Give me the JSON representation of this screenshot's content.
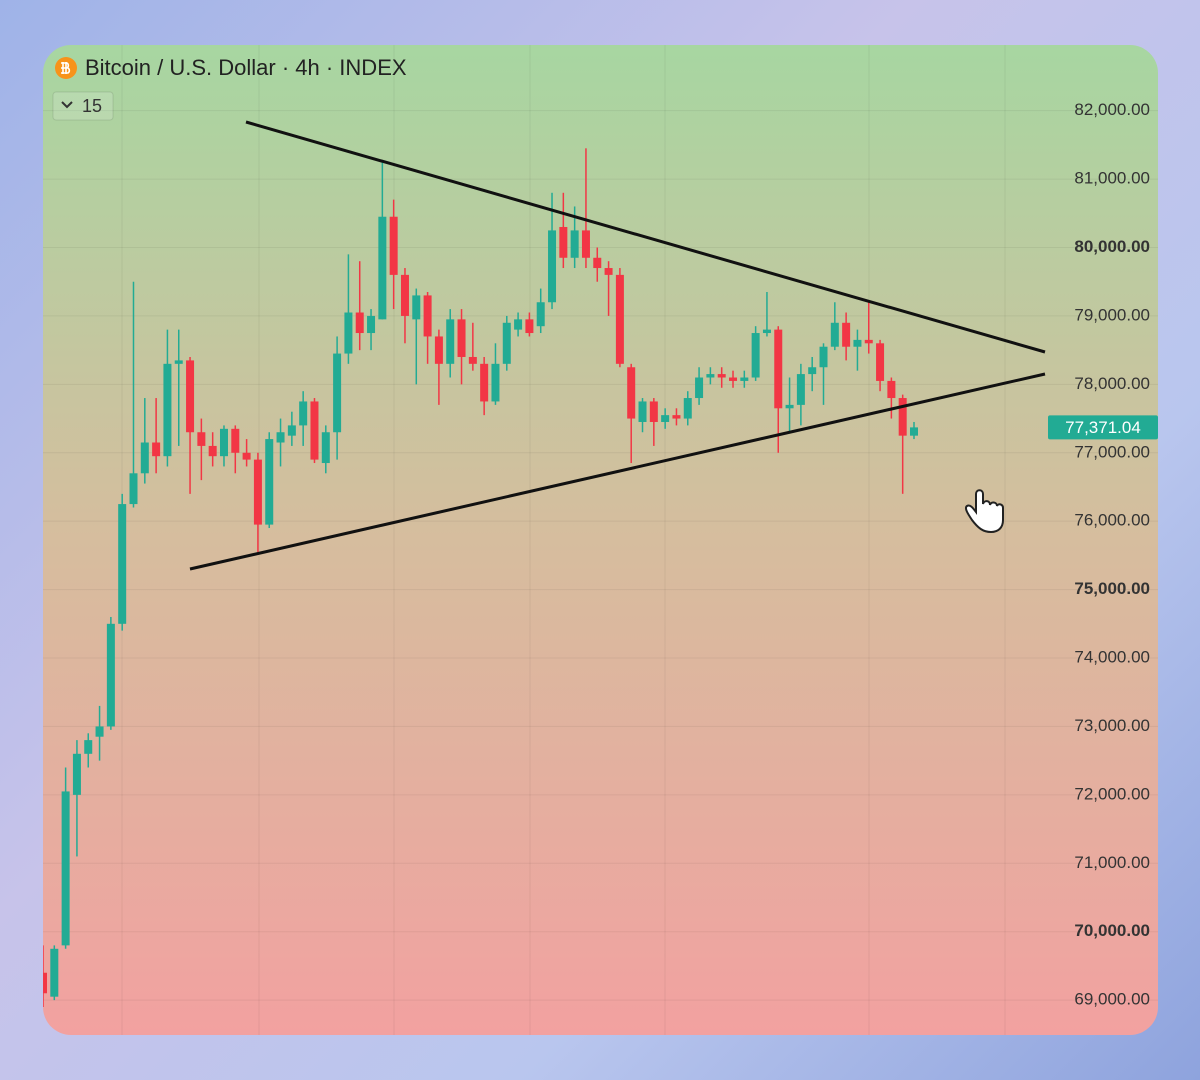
{
  "chart_data": {
    "type": "candlestick",
    "title": "Bitcoin / U.S. Dollar · 4h · INDEX",
    "indicator_count": 15,
    "open": [
      69400,
      69050,
      69800,
      72000,
      72600,
      72850,
      73000,
      74500,
      76250,
      76700,
      77150,
      76950,
      78300,
      78350,
      77300,
      77100,
      76950,
      77350,
      77000,
      76900,
      75950,
      77150,
      77250,
      77400,
      77750,
      76850,
      77300,
      78450,
      79050,
      78750,
      78950,
      80450,
      79600,
      78950,
      79300,
      78700,
      78300,
      78950,
      78400,
      78300,
      77750,
      78300,
      78800,
      78950,
      78850,
      79200,
      80300,
      79850,
      80250,
      79850,
      79700,
      79600,
      78250,
      77450,
      77750,
      77450,
      77550,
      77500,
      77800,
      78100,
      78150,
      78100,
      78050,
      78100,
      78750,
      78800,
      77650,
      77700,
      78150,
      78250,
      78550,
      78900,
      78550,
      78650,
      78600,
      78050,
      77800,
      77250
    ],
    "high": [
      69800,
      69800,
      72400,
      72800,
      72900,
      73300,
      74600,
      76400,
      79500,
      77800,
      77800,
      78800,
      78800,
      78400,
      77500,
      77300,
      77400,
      77400,
      77200,
      77000,
      77300,
      77500,
      77600,
      77900,
      77800,
      77400,
      78700,
      79900,
      79800,
      79100,
      81250,
      80700,
      79700,
      79400,
      79350,
      78800,
      79100,
      79100,
      78900,
      78400,
      78600,
      79000,
      79050,
      79050,
      79400,
      80800,
      80800,
      80600,
      81450,
      80000,
      79800,
      79700,
      78300,
      77800,
      77800,
      77650,
      77650,
      77900,
      78250,
      78250,
      78250,
      78200,
      78200,
      78850,
      79350,
      78850,
      78100,
      78300,
      78400,
      78600,
      79200,
      79050,
      78800,
      79200,
      78650,
      78100,
      77850,
      77450
    ],
    "low": [
      68900,
      69000,
      69750,
      71100,
      72400,
      72500,
      72950,
      74400,
      76200,
      76550,
      76700,
      76800,
      77100,
      76400,
      76600,
      76800,
      76800,
      76700,
      76800,
      75550,
      75900,
      76800,
      77100,
      77100,
      76850,
      76700,
      76900,
      78300,
      78500,
      78500,
      78950,
      79100,
      78600,
      78000,
      78300,
      77700,
      78100,
      78000,
      78200,
      77550,
      77700,
      78200,
      78700,
      78700,
      78750,
      79100,
      79700,
      79700,
      79700,
      79500,
      79000,
      78250,
      76850,
      77300,
      77100,
      77350,
      77400,
      77400,
      77700,
      78000,
      77950,
      77950,
      77950,
      78050,
      78700,
      77000,
      77300,
      77400,
      77900,
      77700,
      78500,
      78350,
      78200,
      78450,
      77900,
      77500,
      76400,
      77200
    ],
    "close": [
      69100,
      69750,
      72050,
      72600,
      72800,
      73000,
      74500,
      76250,
      76700,
      77150,
      76950,
      78300,
      78350,
      77300,
      77100,
      76950,
      77350,
      77000,
      76900,
      75950,
      77200,
      77300,
      77400,
      77750,
      76900,
      77300,
      78450,
      79050,
      78750,
      79000,
      80450,
      79600,
      79000,
      79300,
      78700,
      78300,
      78950,
      78400,
      78300,
      77750,
      78300,
      78900,
      78950,
      78750,
      79200,
      80250,
      79850,
      80250,
      79850,
      79700,
      79600,
      78300,
      77500,
      77750,
      77450,
      77550,
      77500,
      77800,
      78100,
      78150,
      78100,
      78050,
      78100,
      78750,
      78800,
      77650,
      77700,
      78150,
      78250,
      78550,
      78900,
      78550,
      78650,
      78600,
      78050,
      77800,
      77250,
      77371.04
    ],
    "colors": {
      "up": "#22ab94",
      "down": "#f23645"
    },
    "ylim": [
      68490,
      82960
    ],
    "yticks": [
      {
        "value": 69000,
        "label": "69,000.00"
      },
      {
        "value": 70000,
        "label": "70,000.00"
      },
      {
        "value": 71000,
        "label": "71,000.00"
      },
      {
        "value": 72000,
        "label": "72,000.00"
      },
      {
        "value": 73000,
        "label": "73,000.00"
      },
      {
        "value": 74000,
        "label": "74,000.00"
      },
      {
        "value": 75000,
        "label": "75,000.00"
      },
      {
        "value": 76000,
        "label": "76,000.00"
      },
      {
        "value": 77000,
        "label": "77,000.00"
      },
      {
        "value": 78000,
        "label": "78,000.00"
      },
      {
        "value": 79000,
        "label": "79,000.00"
      },
      {
        "value": 80000,
        "label": "80,000.00"
      },
      {
        "value": 81000,
        "label": "81,000.00"
      },
      {
        "value": 82000,
        "label": "82,000.00"
      }
    ],
    "last_price": {
      "value": 77371.04,
      "label": "77,371.04"
    },
    "grid": true
  }
}
